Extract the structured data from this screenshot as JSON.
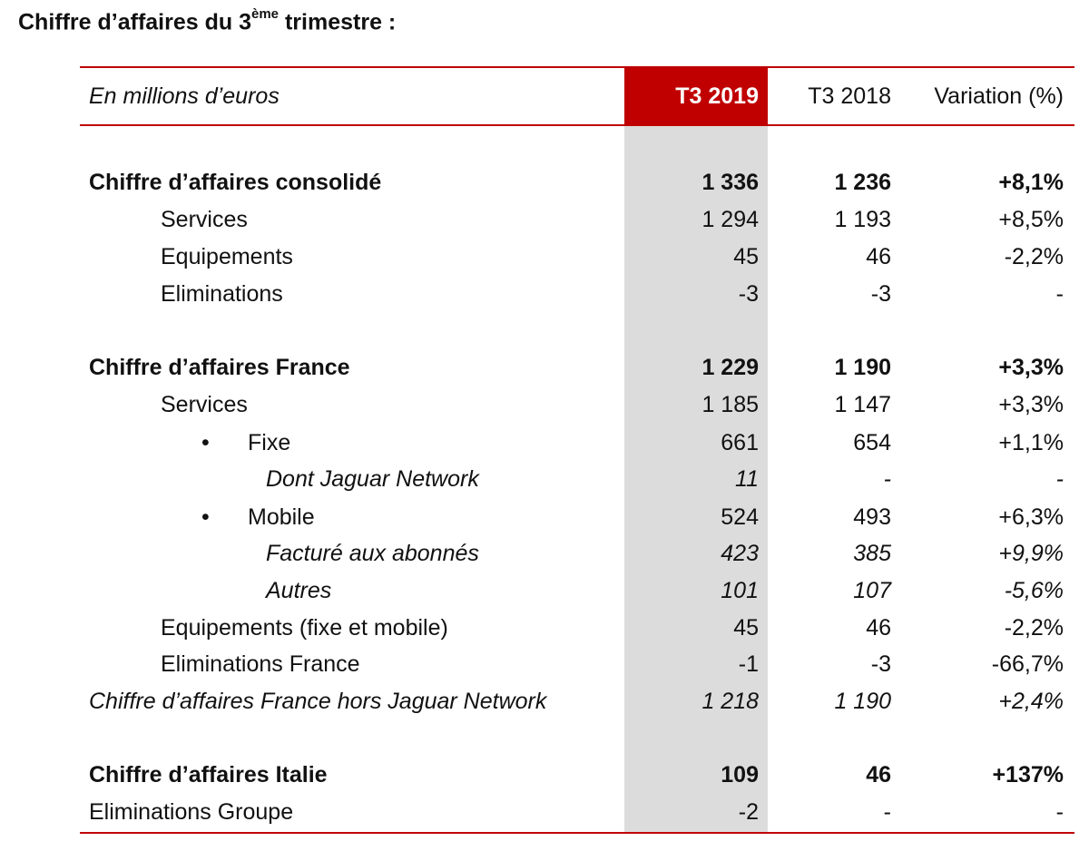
{
  "title": {
    "main": "Chiffre d’affaires du 3",
    "sup": "ème",
    "rest": " trimestre :"
  },
  "header": {
    "unit_label": "En millions d’euros",
    "col1": "T3 2019",
    "col2": "T3 2018",
    "col3": "Variation (%)"
  },
  "rows": {
    "consolide": {
      "label": "Chiffre d’affaires consolidé",
      "v2019": "1 336",
      "v2018": "1 236",
      "var": "+8,1%"
    },
    "services": {
      "label": "Services",
      "v2019": "1 294",
      "v2018": "1 193",
      "var": "+8,5%"
    },
    "equipements": {
      "label": "Equipements",
      "v2019": "45",
      "v2018": "46",
      "var": "-2,2%"
    },
    "eliminations": {
      "label": "Eliminations",
      "v2019": "-3",
      "v2018": "-3",
      "var": "-"
    },
    "france": {
      "label": "Chiffre d’affaires France",
      "v2019": "1 229",
      "v2018": "1 190",
      "var": "+3,3%"
    },
    "france_services": {
      "label": "Services",
      "v2019": "1 185",
      "v2018": "1 147",
      "var": "+3,3%"
    },
    "fixe": {
      "bullet": "•",
      "label": "Fixe",
      "v2019": "661",
      "v2018": "654",
      "var": "+1,1%"
    },
    "jaguar": {
      "label": "Dont Jaguar Network",
      "v2019": "11",
      "v2018": "-",
      "var": "-"
    },
    "mobile": {
      "bullet": "•",
      "label": "Mobile",
      "v2019": "524",
      "v2018": "493",
      "var": "+6,3%"
    },
    "facture": {
      "label": "Facturé aux abonnés",
      "v2019": "423",
      "v2018": "385",
      "var": "+9,9%"
    },
    "autres": {
      "label": "Autres",
      "v2019": "101",
      "v2018": "107",
      "var": "-5,6%"
    },
    "france_equipements": {
      "label": "Equipements (fixe et mobile)",
      "v2019": "45",
      "v2018": "46",
      "var": "-2,2%"
    },
    "france_eliminations": {
      "label": "Eliminations France",
      "v2019": "-1",
      "v2018": "-3",
      "var": "-66,7%"
    },
    "france_hors_jaguar": {
      "label": "Chiffre d’affaires France hors Jaguar Network",
      "v2019": "1 218",
      "v2018": "1 190",
      "var": "+2,4%"
    },
    "italie": {
      "label": "Chiffre d’affaires Italie",
      "v2019": "109",
      "v2018": "46",
      "var": "+137%"
    },
    "eliminations_groupe": {
      "label": "Eliminations Groupe",
      "v2019": "-2",
      "v2018": "-",
      "var": "-"
    }
  },
  "colors": {
    "accent": "#c00000",
    "highlight_column": "#dcdcdc"
  }
}
